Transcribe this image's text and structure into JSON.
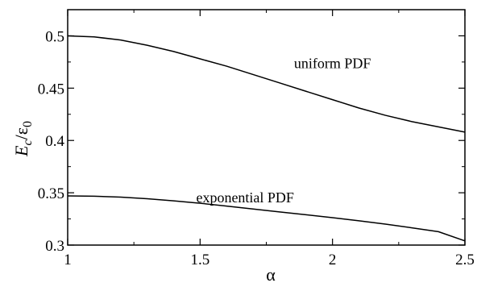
{
  "chart_data": {
    "type": "line",
    "xlabel": "α",
    "ylabel": {
      "main": "E",
      "sub1": "c",
      "slash": "/",
      "denom": "ε",
      "sub2": "0"
    },
    "xlim": [
      1,
      2.5
    ],
    "ylim": [
      0.3,
      0.525
    ],
    "xticks": [
      1,
      1.5,
      2,
      2.5
    ],
    "xtick_labels": [
      "1",
      "1.5",
      "2",
      "2.5"
    ],
    "yticks": [
      0.3,
      0.35,
      0.4,
      0.45,
      0.5
    ],
    "ytick_labels": [
      "0.3",
      "0.35",
      "0.4",
      "0.45",
      "0.5"
    ],
    "grid": false,
    "series": [
      {
        "x": [
          1.0,
          1.1,
          1.2,
          1.3,
          1.4,
          1.5,
          1.6,
          1.7,
          1.8,
          1.9,
          2.0,
          2.1,
          2.2,
          2.3,
          2.4,
          2.5
        ],
        "y": [
          0.5,
          0.499,
          0.496,
          0.491,
          0.485,
          0.478,
          0.471,
          0.463,
          0.455,
          0.447,
          0.439,
          0.431,
          0.424,
          0.418,
          0.413,
          0.408
        ]
      },
      {
        "x": [
          1.0,
          1.1,
          1.2,
          1.3,
          1.4,
          1.5,
          1.6,
          1.7,
          1.8,
          1.9,
          2.0,
          2.1,
          2.2,
          2.3,
          2.4,
          2.5
        ],
        "y": [
          0.347,
          0.3467,
          0.3458,
          0.3443,
          0.3423,
          0.34,
          0.3373,
          0.3345,
          0.3317,
          0.329,
          0.3262,
          0.3232,
          0.32,
          0.3165,
          0.3128,
          0.304
        ]
      }
    ],
    "annotations": [
      {
        "text": "uniform PDF",
        "x": 2.0,
        "y": 0.469
      },
      {
        "text": "exponential PDF",
        "x": 1.67,
        "y": 0.341
      }
    ]
  }
}
